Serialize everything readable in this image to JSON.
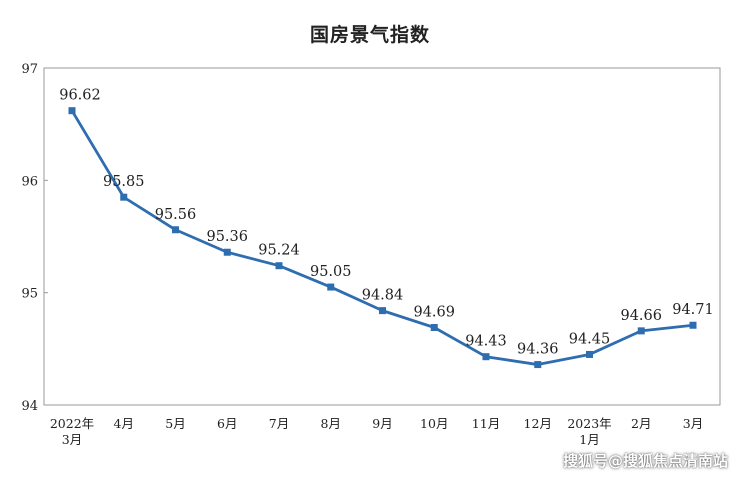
{
  "chart_data": {
    "type": "line",
    "title": "国房景气指数",
    "xlabel": "",
    "ylabel": "",
    "categories": [
      "2022年\n3月",
      "4月",
      "5月",
      "6月",
      "7月",
      "8月",
      "9月",
      "10月",
      "11月",
      "12月",
      "2023年\n1月",
      "2月",
      "3月"
    ],
    "values": [
      96.62,
      95.85,
      95.56,
      95.36,
      95.24,
      95.05,
      94.84,
      94.69,
      94.43,
      94.36,
      94.45,
      94.66,
      94.71
    ],
    "value_labels": [
      "96.62",
      "95.85",
      "95.56",
      "95.36",
      "95.24",
      "95.05",
      "94.84",
      "94.69",
      "94.43",
      "94.36",
      "94.45",
      "94.66",
      "94.71"
    ],
    "ylim": [
      94,
      97
    ],
    "yticks": [
      "94",
      "95",
      "96",
      "97"
    ],
    "grid": false,
    "legend": "none",
    "line_color": "#2E6DB0",
    "marker": "square"
  },
  "watermark": "搜狐号@搜狐焦点清南站"
}
